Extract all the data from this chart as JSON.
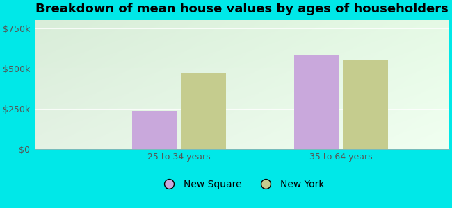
{
  "title": "Breakdown of mean house values by ages of householders",
  "categories": [
    "25 to 34 years",
    "35 to 64 years"
  ],
  "series": {
    "New Square": [
      235000,
      580000
    ],
    "New York": [
      470000,
      555000
    ]
  },
  "bar_colors": {
    "New Square": "#c9a8dc",
    "New York": "#c5cc8e"
  },
  "ylim": [
    0,
    800000
  ],
  "yticks": [
    0,
    250000,
    500000,
    750000
  ],
  "ytick_labels": [
    "$0",
    "$250k",
    "$500k",
    "$750k"
  ],
  "background_color": "#00e8e8",
  "title_fontsize": 13,
  "tick_fontsize": 9,
  "legend_fontsize": 10,
  "bar_width": 0.25
}
